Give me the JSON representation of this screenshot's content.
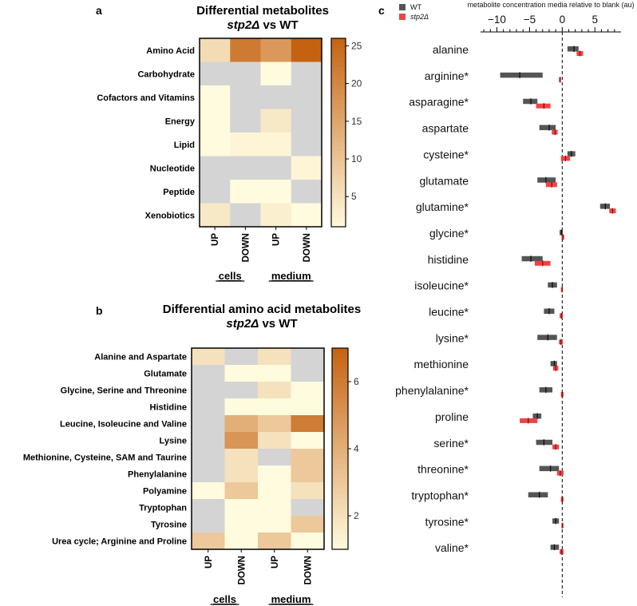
{
  "panels": {
    "a": "a",
    "b": "b",
    "c": "c"
  },
  "groups": {
    "cells": "cells",
    "medium": "medium"
  },
  "chart_data": [
    {
      "id": "heatmap_a",
      "type": "heatmap",
      "title_line1": "Differential metabolites",
      "title_gene": "stp2Δ",
      "title_rest": " vs WT",
      "rows": [
        "Amino Acid",
        "Carbohydrate",
        "Cofactors and Vitamins",
        "Energy",
        "Lipid",
        "Nucleotide",
        "Peptide",
        "Xenobiotics"
      ],
      "columns": [
        "UP",
        "DOWN",
        "UP",
        "DOWN"
      ],
      "values": [
        [
          6,
          22,
          17,
          26
        ],
        [
          null,
          null,
          1,
          null
        ],
        [
          1,
          null,
          null,
          null
        ],
        [
          1,
          null,
          4,
          null
        ],
        [
          1,
          2,
          2,
          null
        ],
        [
          null,
          null,
          null,
          2
        ],
        [
          null,
          1,
          1,
          null
        ],
        [
          4,
          null,
          3,
          1
        ]
      ],
      "colorbar_range": [
        1,
        26
      ],
      "colorbar_ticks": [
        "5",
        "10",
        "15",
        "20",
        "25"
      ]
    },
    {
      "id": "heatmap_b",
      "type": "heatmap",
      "title_line1": "Differential amino acid metabolites",
      "title_gene": "stp2Δ",
      "title_rest": " vs WT",
      "rows": [
        "Alanine and Aspartate",
        "Glutamate",
        "Glycine, Serine and Threonine",
        "Histidine",
        "Leucine, Isoleucine and Valine",
        "Lysine",
        "Methionine, Cysteine, SAM and Taurine",
        "Phenylalanine",
        "Polyamine",
        "Tryptophan",
        "Tyrosine",
        "Urea cycle; Arginine and Proline"
      ],
      "columns": [
        "UP",
        "DOWN",
        "UP",
        "DOWN"
      ],
      "values": [
        [
          2,
          null,
          2,
          null
        ],
        [
          null,
          1,
          1,
          null
        ],
        [
          null,
          null,
          2,
          1
        ],
        [
          null,
          1,
          1,
          1
        ],
        [
          null,
          4,
          3,
          6
        ],
        [
          null,
          5,
          2,
          1
        ],
        [
          null,
          2,
          null,
          3
        ],
        [
          null,
          2,
          1,
          3
        ],
        [
          1,
          3,
          1,
          2
        ],
        [
          null,
          1,
          1,
          null
        ],
        [
          null,
          1,
          1,
          3
        ],
        [
          3,
          1,
          3,
          1
        ]
      ],
      "colorbar_range": [
        1,
        7
      ],
      "colorbar_ticks": [
        "2",
        "4",
        "6"
      ]
    },
    {
      "id": "floating_bars_c",
      "type": "bar",
      "orientation": "horizontal floating",
      "xlabel": "metabolite concentration media relative to blank (au)",
      "xlim": [
        -12.5,
        9
      ],
      "x_ticks": [
        "−10",
        "−5",
        "0",
        "5"
      ],
      "x_tick_values": [
        -10,
        -5,
        0,
        5
      ],
      "legend": [
        "WT",
        "stp2Δ"
      ],
      "categories": [
        "alanine",
        "arginine*",
        "asparagine*",
        "aspartate",
        "cysteine*",
        "glutamate",
        "glutamine*",
        "glycine*",
        "histidine",
        "isoleucine*",
        "leucine*",
        "lysine*",
        "methionine",
        "phenylalanine*",
        "proline",
        "serine*",
        "threonine*",
        "tryptophan*",
        "tyrosine*",
        "valine*"
      ],
      "series": [
        {
          "name": "WT",
          "color": "#555555",
          "min": [
            0.8,
            -9.5,
            -6.0,
            -3.5,
            0.8,
            -3.8,
            5.8,
            -0.4,
            -6.2,
            -2.2,
            -2.8,
            -3.8,
            -1.8,
            -3.5,
            -4.5,
            -4.0,
            -3.5,
            -5.2,
            -1.5,
            -1.8
          ],
          "max": [
            2.5,
            -3.0,
            -3.8,
            -1.0,
            2.0,
            -1.0,
            7.3,
            0.1,
            -3.0,
            -0.8,
            -1.2,
            -0.8,
            -0.8,
            -1.5,
            -3.2,
            -1.5,
            -0.5,
            -2.2,
            -0.5,
            -0.5
          ],
          "median": [
            1.8,
            -6.5,
            -4.8,
            -2.0,
            1.4,
            -2.5,
            6.6,
            -0.1,
            -4.8,
            -1.5,
            -2.0,
            -2.2,
            -1.2,
            -2.5,
            -3.8,
            -2.8,
            -1.8,
            -3.5,
            -1.0,
            -1.2
          ]
        },
        {
          "name": "stp2Δ",
          "color": "#ee4444",
          "min": [
            2.2,
            -0.5,
            -4.0,
            -1.6,
            -0.2,
            -2.5,
            7.2,
            -0.1,
            -4.2,
            -0.2,
            -0.4,
            -0.5,
            -1.4,
            -0.2,
            -6.5,
            -1.5,
            -0.8,
            -0.2,
            -0.1,
            -0.4
          ],
          "max": [
            3.2,
            -0.2,
            -1.8,
            -0.7,
            1.2,
            -0.8,
            8.2,
            0.3,
            -1.8,
            0.1,
            0.1,
            0.1,
            -0.6,
            0.2,
            -3.8,
            -0.5,
            0.2,
            0.2,
            0.2,
            0.2
          ],
          "median": [
            2.7,
            -0.3,
            -2.8,
            -1.1,
            0.5,
            -1.6,
            7.7,
            0.1,
            -3.0,
            0.0,
            -0.1,
            -0.2,
            -1.0,
            0.0,
            -5.2,
            -1.0,
            -0.3,
            0.0,
            0.0,
            -0.1
          ]
        }
      ]
    }
  ]
}
